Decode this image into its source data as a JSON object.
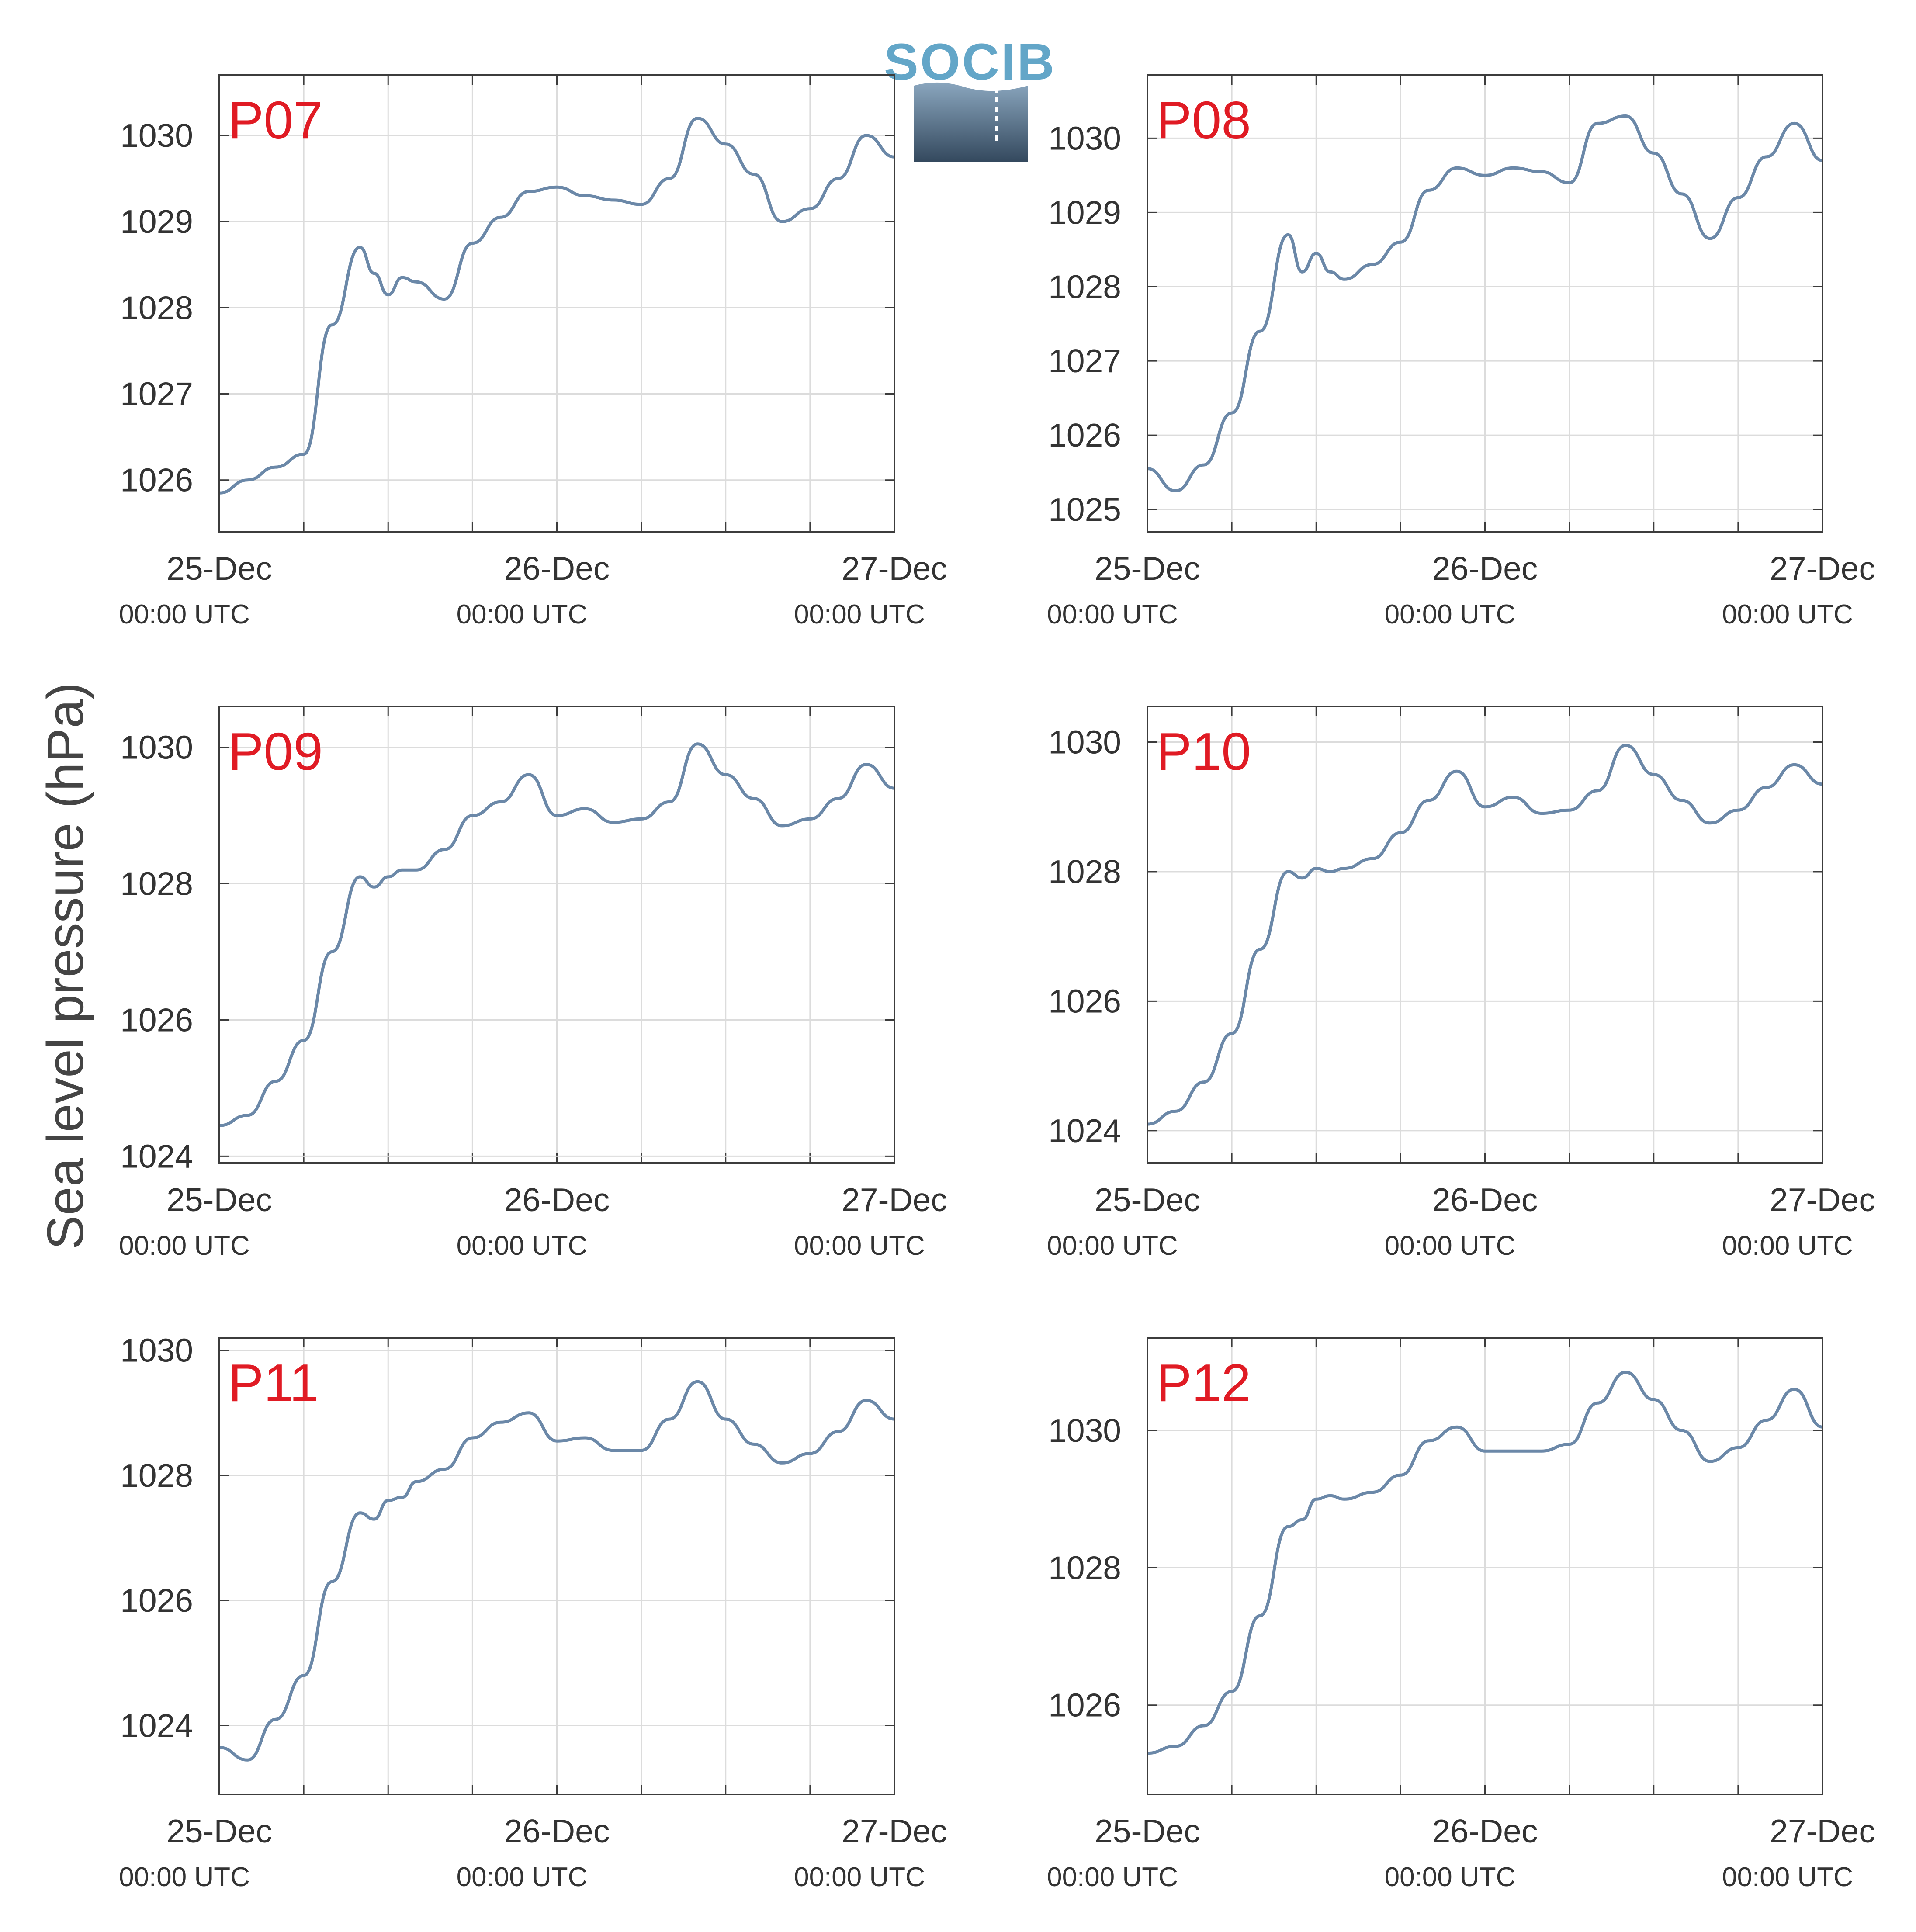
{
  "figure": {
    "ylabel": "Sea level pressure (hPa)",
    "logo_text": "SOCIB",
    "colors": {
      "line": "#6b88a8",
      "panel_label": "#e01b24",
      "grid": "#dcdcdc",
      "axis": "#3c3c3c",
      "logo_blue": "#63a6c8",
      "logo_dark": "#34495e"
    }
  },
  "chart_data": [
    {
      "type": "line",
      "panel_label": "P07",
      "x_range": [
        "2017-12-25T00:00Z",
        "2017-12-27T00:00Z"
      ],
      "x_ticks": [
        {
          "day": "25-Dec",
          "time": "00:00 UTC"
        },
        {
          "day": "26-Dec",
          "time": "00:00 UTC"
        },
        {
          "day": "27-Dec",
          "time": "00:00 UTC"
        }
      ],
      "x_hours": [
        0,
        2,
        4,
        6,
        8,
        10,
        11,
        12,
        13,
        14,
        16,
        18,
        20,
        22,
        24,
        26,
        28,
        30,
        32,
        34,
        36,
        38,
        40,
        42,
        44,
        46,
        48
      ],
      "y_values": [
        1025.85,
        1026.0,
        1026.15,
        1026.3,
        1027.8,
        1028.7,
        1028.4,
        1028.15,
        1028.35,
        1028.3,
        1028.1,
        1028.75,
        1029.05,
        1029.35,
        1029.4,
        1029.3,
        1029.25,
        1029.2,
        1029.5,
        1030.2,
        1029.9,
        1029.55,
        1029.0,
        1029.15,
        1029.5,
        1030.0,
        1029.75
      ],
      "ylim": [
        1025.4,
        1030.7
      ],
      "y_ticks": [
        1026,
        1027,
        1028,
        1029,
        1030
      ],
      "grid": true
    },
    {
      "type": "line",
      "panel_label": "P08",
      "x_range": [
        "2017-12-25T00:00Z",
        "2017-12-27T00:00Z"
      ],
      "x_ticks": [
        {
          "day": "25-Dec",
          "time": "00:00 UTC"
        },
        {
          "day": "26-Dec",
          "time": "00:00 UTC"
        },
        {
          "day": "27-Dec",
          "time": "00:00 UTC"
        }
      ],
      "x_hours": [
        0,
        2,
        4,
        6,
        8,
        10,
        11,
        12,
        13,
        14,
        16,
        18,
        20,
        22,
        24,
        26,
        28,
        30,
        32,
        34,
        36,
        38,
        40,
        42,
        44,
        46,
        48
      ],
      "y_values": [
        1025.55,
        1025.25,
        1025.6,
        1026.3,
        1027.4,
        1028.7,
        1028.2,
        1028.45,
        1028.2,
        1028.1,
        1028.3,
        1028.6,
        1029.3,
        1029.6,
        1029.5,
        1029.6,
        1029.55,
        1029.4,
        1030.2,
        1030.3,
        1029.8,
        1029.25,
        1028.65,
        1029.2,
        1029.75,
        1030.2,
        1029.7
      ],
      "ylim": [
        1024.7,
        1030.85
      ],
      "y_ticks": [
        1025,
        1026,
        1027,
        1028,
        1029,
        1030
      ],
      "grid": true
    },
    {
      "type": "line",
      "panel_label": "P09",
      "x_range": [
        "2017-12-25T00:00Z",
        "2017-12-27T00:00Z"
      ],
      "x_hours": [
        0,
        2,
        4,
        6,
        8,
        10,
        11,
        12,
        13,
        14,
        16,
        18,
        20,
        22,
        24,
        26,
        28,
        30,
        32,
        34,
        36,
        38,
        40,
        42,
        44,
        46,
        48
      ],
      "x_ticks": [
        {
          "day": "25-Dec",
          "time": "00:00 UTC"
        },
        {
          "day": "26-Dec",
          "time": "00:00 UTC"
        },
        {
          "day": "27-Dec",
          "time": "00:00 UTC"
        }
      ],
      "y_values": [
        1024.45,
        1024.6,
        1025.1,
        1025.7,
        1027.0,
        1028.1,
        1027.95,
        1028.1,
        1028.2,
        1028.2,
        1028.5,
        1029.0,
        1029.2,
        1029.6,
        1029.0,
        1029.1,
        1028.9,
        1028.95,
        1029.2,
        1030.05,
        1029.6,
        1029.25,
        1028.85,
        1028.95,
        1029.25,
        1029.75,
        1029.4
      ],
      "ylim": [
        1023.9,
        1030.6
      ],
      "y_ticks": [
        1024,
        1026,
        1028,
        1030
      ],
      "grid": true
    },
    {
      "type": "line",
      "panel_label": "P10",
      "x_range": [
        "2017-12-25T00:00Z",
        "2017-12-27T00:00Z"
      ],
      "x_ticks": [
        {
          "day": "25-Dec",
          "time": "00:00 UTC"
        },
        {
          "day": "26-Dec",
          "time": "00:00 UTC"
        },
        {
          "day": "27-Dec",
          "time": "00:00 UTC"
        }
      ],
      "x_hours": [
        0,
        2,
        4,
        6,
        8,
        10,
        11,
        12,
        13,
        14,
        16,
        18,
        20,
        22,
        24,
        26,
        28,
        30,
        32,
        34,
        36,
        38,
        40,
        42,
        44,
        46,
        48
      ],
      "y_values": [
        1024.1,
        1024.3,
        1024.75,
        1025.5,
        1026.8,
        1028.0,
        1027.9,
        1028.05,
        1028.0,
        1028.05,
        1028.2,
        1028.6,
        1029.1,
        1029.55,
        1029.0,
        1029.15,
        1028.9,
        1028.95,
        1029.25,
        1029.95,
        1029.5,
        1029.1,
        1028.75,
        1028.95,
        1029.3,
        1029.65,
        1029.35
      ],
      "ylim": [
        1023.5,
        1030.55
      ],
      "y_ticks": [
        1024,
        1026,
        1028,
        1030
      ],
      "grid": true
    },
    {
      "type": "line",
      "panel_label": "P11",
      "x_range": [
        "2017-12-25T00:00Z",
        "2017-12-27T00:00Z"
      ],
      "x_ticks": [
        {
          "day": "25-Dec",
          "time": "00:00 UTC"
        },
        {
          "day": "26-Dec",
          "time": "00:00 UTC"
        },
        {
          "day": "27-Dec",
          "time": "00:00 UTC"
        }
      ],
      "x_hours": [
        0,
        2,
        4,
        6,
        8,
        10,
        11,
        12,
        13,
        14,
        16,
        18,
        20,
        22,
        24,
        26,
        28,
        30,
        32,
        34,
        36,
        38,
        40,
        42,
        44,
        46,
        48
      ],
      "y_values": [
        1023.65,
        1023.45,
        1024.1,
        1024.8,
        1026.3,
        1027.4,
        1027.3,
        1027.6,
        1027.65,
        1027.9,
        1028.1,
        1028.6,
        1028.85,
        1029.0,
        1028.55,
        1028.6,
        1028.4,
        1028.4,
        1028.9,
        1029.5,
        1028.9,
        1028.5,
        1028.2,
        1028.35,
        1028.7,
        1029.2,
        1028.9
      ],
      "ylim": [
        1022.9,
        1030.2
      ],
      "y_ticks": [
        1024,
        1026,
        1028,
        1030
      ],
      "grid": true
    },
    {
      "type": "line",
      "panel_label": "P12",
      "x_range": [
        "2017-12-25T00:00Z",
        "2017-12-27T00:00Z"
      ],
      "x_ticks": [
        {
          "day": "25-Dec",
          "time": "00:00 UTC"
        },
        {
          "day": "26-Dec",
          "time": "00:00 UTC"
        },
        {
          "day": "27-Dec",
          "time": "00:00 UTC"
        }
      ],
      "x_hours": [
        0,
        2,
        4,
        6,
        8,
        10,
        11,
        12,
        13,
        14,
        16,
        18,
        20,
        22,
        24,
        26,
        28,
        30,
        32,
        34,
        36,
        38,
        40,
        42,
        44,
        46,
        48
      ],
      "y_values": [
        1025.3,
        1025.4,
        1025.7,
        1026.2,
        1027.3,
        1028.6,
        1028.7,
        1029.0,
        1029.05,
        1029.0,
        1029.1,
        1029.35,
        1029.85,
        1030.05,
        1029.7,
        1029.7,
        1029.7,
        1029.8,
        1030.4,
        1030.85,
        1030.45,
        1030.0,
        1029.55,
        1029.75,
        1030.15,
        1030.6,
        1030.05
      ],
      "ylim": [
        1024.7,
        1031.35
      ],
      "y_ticks": [
        1026,
        1028,
        1030
      ],
      "grid": true
    }
  ]
}
